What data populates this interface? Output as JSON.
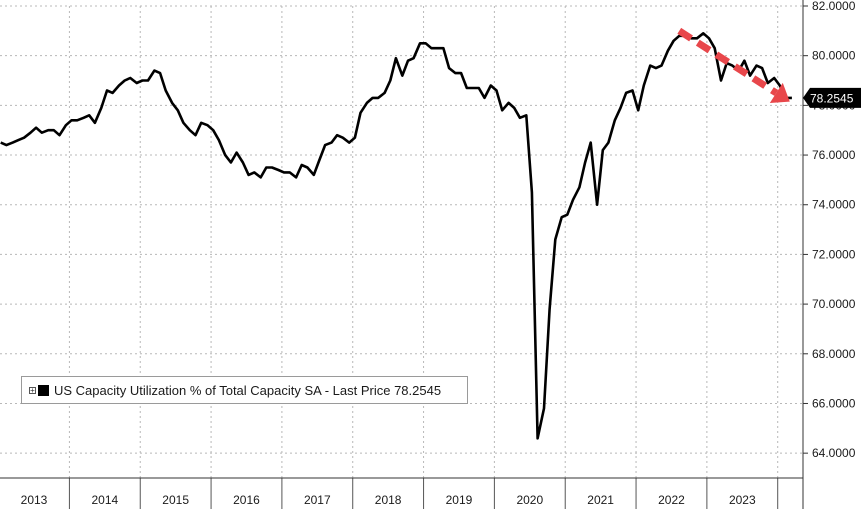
{
  "colors": {
    "line": "#000000",
    "arrow": "#e8474b",
    "grid": "#b8b8b8",
    "last_tag_bg": "#000000",
    "last_tag_fg": "#ffffff"
  },
  "legend": {
    "text": "US Capacity Utilization % of Total Capacity SA - Last Price 78.2545",
    "toggle": "+"
  },
  "chart_data": {
    "type": "line",
    "title": "",
    "xlabel": "",
    "ylabel": "",
    "ylim": [
      63.0,
      82.0
    ],
    "xlim": [
      2012.99,
      2024.2
    ],
    "y_ticks": [
      64,
      66,
      68,
      70,
      72,
      74,
      76,
      78,
      80,
      82
    ],
    "y_tick_labels": [
      "64.0000",
      "66.0000",
      "68.0000",
      "70.0000",
      "72.0000",
      "74.0000",
      "76.0000",
      "78.0000",
      "80.0000",
      "82.0000"
    ],
    "x_year_labels": [
      "2013",
      "2014",
      "2015",
      "2016",
      "2017",
      "2018",
      "2019",
      "2020",
      "2021",
      "2022",
      "2023"
    ],
    "grid": true,
    "legend_position": "bottom-left",
    "last_value_label": "78.2545",
    "annotation": "red dashed downward arrow from early-2022 peak to latest value",
    "series": [
      {
        "name": "US Capacity Utilization % of Total Capacity SA",
        "points": [
          [
            2013.0,
            76.5
          ],
          [
            2013.08,
            76.4
          ],
          [
            2013.17,
            76.5
          ],
          [
            2013.25,
            76.6
          ],
          [
            2013.33,
            76.7
          ],
          [
            2013.42,
            76.9
          ],
          [
            2013.5,
            77.1
          ],
          [
            2013.58,
            76.9
          ],
          [
            2013.67,
            77.0
          ],
          [
            2013.75,
            77.0
          ],
          [
            2013.83,
            76.8
          ],
          [
            2013.92,
            77.2
          ],
          [
            2014.0,
            77.4
          ],
          [
            2014.08,
            77.4
          ],
          [
            2014.17,
            77.5
          ],
          [
            2014.25,
            77.6
          ],
          [
            2014.33,
            77.3
          ],
          [
            2014.42,
            77.9
          ],
          [
            2014.5,
            78.6
          ],
          [
            2014.58,
            78.5
          ],
          [
            2014.67,
            78.8
          ],
          [
            2014.75,
            79.0
          ],
          [
            2014.83,
            79.1
          ],
          [
            2014.92,
            78.9
          ],
          [
            2015.0,
            79.0
          ],
          [
            2015.08,
            79.0
          ],
          [
            2015.17,
            79.4
          ],
          [
            2015.25,
            79.3
          ],
          [
            2015.33,
            78.6
          ],
          [
            2015.42,
            78.1
          ],
          [
            2015.5,
            77.8
          ],
          [
            2015.58,
            77.3
          ],
          [
            2015.67,
            77.0
          ],
          [
            2015.75,
            76.8
          ],
          [
            2015.83,
            77.3
          ],
          [
            2015.92,
            77.2
          ],
          [
            2016.0,
            77.0
          ],
          [
            2016.08,
            76.6
          ],
          [
            2016.17,
            76.0
          ],
          [
            2016.25,
            75.7
          ],
          [
            2016.33,
            76.1
          ],
          [
            2016.42,
            75.7
          ],
          [
            2016.5,
            75.2
          ],
          [
            2016.58,
            75.3
          ],
          [
            2016.67,
            75.1
          ],
          [
            2016.75,
            75.5
          ],
          [
            2016.83,
            75.5
          ],
          [
            2016.92,
            75.4
          ],
          [
            2017.0,
            75.3
          ],
          [
            2017.08,
            75.3
          ],
          [
            2017.17,
            75.1
          ],
          [
            2017.25,
            75.6
          ],
          [
            2017.33,
            75.5
          ],
          [
            2017.42,
            75.2
          ],
          [
            2017.5,
            75.8
          ],
          [
            2017.58,
            76.4
          ],
          [
            2017.67,
            76.5
          ],
          [
            2017.75,
            76.8
          ],
          [
            2017.83,
            76.7
          ],
          [
            2017.92,
            76.5
          ],
          [
            2018.0,
            76.7
          ],
          [
            2018.08,
            77.7
          ],
          [
            2018.17,
            78.1
          ],
          [
            2018.25,
            78.3
          ],
          [
            2018.33,
            78.3
          ],
          [
            2018.42,
            78.5
          ],
          [
            2018.5,
            79.0
          ],
          [
            2018.58,
            79.9
          ],
          [
            2018.67,
            79.2
          ],
          [
            2018.75,
            79.8
          ],
          [
            2018.83,
            79.9
          ],
          [
            2018.92,
            80.5
          ],
          [
            2019.0,
            80.5
          ],
          [
            2019.08,
            80.3
          ],
          [
            2019.17,
            80.3
          ],
          [
            2019.25,
            80.3
          ],
          [
            2019.33,
            79.5
          ],
          [
            2019.42,
            79.3
          ],
          [
            2019.5,
            79.3
          ],
          [
            2019.58,
            78.7
          ],
          [
            2019.67,
            78.7
          ],
          [
            2019.75,
            78.7
          ],
          [
            2019.83,
            78.3
          ],
          [
            2019.92,
            78.8
          ],
          [
            2020.0,
            78.6
          ],
          [
            2020.08,
            77.8
          ],
          [
            2020.17,
            78.1
          ],
          [
            2020.25,
            77.9
          ],
          [
            2020.33,
            77.5
          ],
          [
            2020.42,
            77.6
          ],
          [
            2020.5,
            74.5
          ],
          [
            2020.58,
            64.6
          ],
          [
            2020.67,
            65.8
          ],
          [
            2020.75,
            69.8
          ],
          [
            2020.83,
            72.6
          ],
          [
            2020.92,
            73.5
          ],
          [
            2021.0,
            73.6
          ],
          [
            2021.08,
            74.2
          ],
          [
            2021.17,
            74.7
          ],
          [
            2021.25,
            75.7
          ],
          [
            2021.33,
            76.5
          ],
          [
            2021.42,
            74.0
          ],
          [
            2021.5,
            76.2
          ],
          [
            2021.58,
            76.5
          ],
          [
            2021.67,
            77.4
          ],
          [
            2021.75,
            77.9
          ],
          [
            2021.83,
            78.5
          ],
          [
            2021.92,
            78.6
          ],
          [
            2022.0,
            77.8
          ],
          [
            2022.08,
            78.8
          ],
          [
            2022.17,
            79.6
          ],
          [
            2022.25,
            79.5
          ],
          [
            2022.33,
            79.6
          ],
          [
            2022.42,
            80.2
          ],
          [
            2022.5,
            80.6
          ],
          [
            2022.58,
            80.8
          ],
          [
            2022.67,
            80.8
          ],
          [
            2022.75,
            80.7
          ],
          [
            2022.83,
            80.7
          ],
          [
            2022.92,
            80.9
          ],
          [
            2023.0,
            80.7
          ],
          [
            2023.08,
            80.3
          ],
          [
            2023.17,
            79.0
          ],
          [
            2023.25,
            79.7
          ],
          [
            2023.33,
            79.6
          ],
          [
            2023.42,
            79.4
          ],
          [
            2023.5,
            79.8
          ],
          [
            2023.58,
            79.2
          ],
          [
            2023.67,
            79.6
          ],
          [
            2023.75,
            79.5
          ],
          [
            2023.83,
            78.9
          ],
          [
            2023.92,
            79.1
          ],
          [
            2024.0,
            78.8
          ],
          [
            2024.08,
            78.3
          ],
          [
            2024.17,
            78.3
          ]
        ]
      }
    ]
  }
}
